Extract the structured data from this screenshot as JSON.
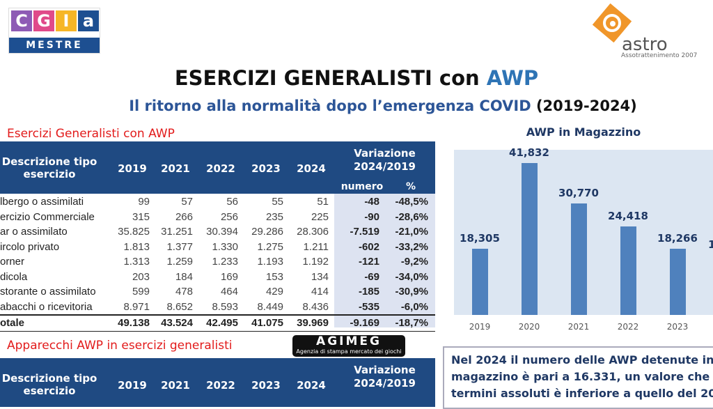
{
  "logos": {
    "cgia": {
      "letters": [
        "C",
        "G",
        "I",
        "a"
      ],
      "colors": [
        "#8e5bb5",
        "#e04a8a",
        "#f6b626",
        "#1d4f91"
      ],
      "sub": "MESTRE"
    },
    "astro": {
      "name": "astro",
      "tagline": "Assotrattenimento 2007",
      "color": "#f0962a"
    },
    "agimeg": {
      "name": "AGIMEG",
      "tagline": "Agenzia di stampa mercato dei giochi"
    }
  },
  "header": {
    "title": "ESERCIZI GENERALISTI con",
    "title_accent": "AWP",
    "subtitle": "Il ritorno alla normalità dopo l’emergenza COVID",
    "subtitle_years": "(2019-2024)"
  },
  "table1": {
    "section_title": "Esercizi Generalisti con AWP",
    "head": {
      "desc": "Descrizione tipo esercizio",
      "years": [
        "2019",
        "2021",
        "2022",
        "2023",
        "2024"
      ],
      "variation": "Variazione 2024/2019",
      "num": "numero",
      "pct": "%"
    },
    "rows": [
      {
        "label": "lbergo o assimilati",
        "vals": [
          "99",
          "57",
          "56",
          "55",
          "51"
        ],
        "num": "-48",
        "pct": "-48,5%"
      },
      {
        "label": "ercizio Commerciale",
        "vals": [
          "315",
          "266",
          "256",
          "235",
          "225"
        ],
        "num": "-90",
        "pct": "-28,6%"
      },
      {
        "label": "ar o assimilato",
        "vals": [
          "35.825",
          "31.251",
          "30.394",
          "29.286",
          "28.306"
        ],
        "num": "-7.519",
        "pct": "-21,0%"
      },
      {
        "label": "ircolo privato",
        "vals": [
          "1.813",
          "1.377",
          "1.330",
          "1.275",
          "1.211"
        ],
        "num": "-602",
        "pct": "-33,2%"
      },
      {
        "label": "orner",
        "vals": [
          "1.313",
          "1.259",
          "1.233",
          "1.193",
          "1.192"
        ],
        "num": "-121",
        "pct": "-9,2%"
      },
      {
        "label": "dicola",
        "vals": [
          "203",
          "184",
          "169",
          "153",
          "134"
        ],
        "num": "-69",
        "pct": "-34,0%"
      },
      {
        "label": "storante o assimilato",
        "vals": [
          "599",
          "478",
          "464",
          "429",
          "414"
        ],
        "num": "-185",
        "pct": "-30,9%"
      },
      {
        "label": "abacchi o ricevitoria",
        "vals": [
          "8.971",
          "8.652",
          "8.593",
          "8.449",
          "8.436"
        ],
        "num": "-535",
        "pct": "-6,0%"
      }
    ],
    "total": {
      "label": "otale",
      "vals": [
        "49.138",
        "43.524",
        "42.495",
        "41.075",
        "39.969"
      ],
      "num": "-9.169",
      "pct": "-18,7%"
    }
  },
  "table2": {
    "section_title": "Apparecchi AWP in esercizi generalisti",
    "head": {
      "desc": "Descrizione tipo esercizio",
      "years": [
        "2019",
        "2021",
        "2022",
        "2023",
        "2024"
      ],
      "variation": "Variazione 2024/2019"
    }
  },
  "chart_data": {
    "type": "bar",
    "title": "AWP in Magazzino",
    "categories": [
      "2019",
      "2020",
      "2021",
      "2022",
      "2023"
    ],
    "values": [
      18305,
      41832,
      30770,
      24418,
      18266
    ],
    "labels": [
      "18,305",
      "41,832",
      "30,770",
      "24,418",
      "18,266"
    ],
    "partial_label": "1",
    "bar_color": "#4f81bd",
    "background": "#dce6f2",
    "grid": false
  },
  "note": {
    "lines": [
      "Nel 2024 il numero delle AWP detenute in",
      "magazzino è pari a 16.331, un valore che",
      "termini assoluti è inferiore a quello del 20"
    ]
  }
}
